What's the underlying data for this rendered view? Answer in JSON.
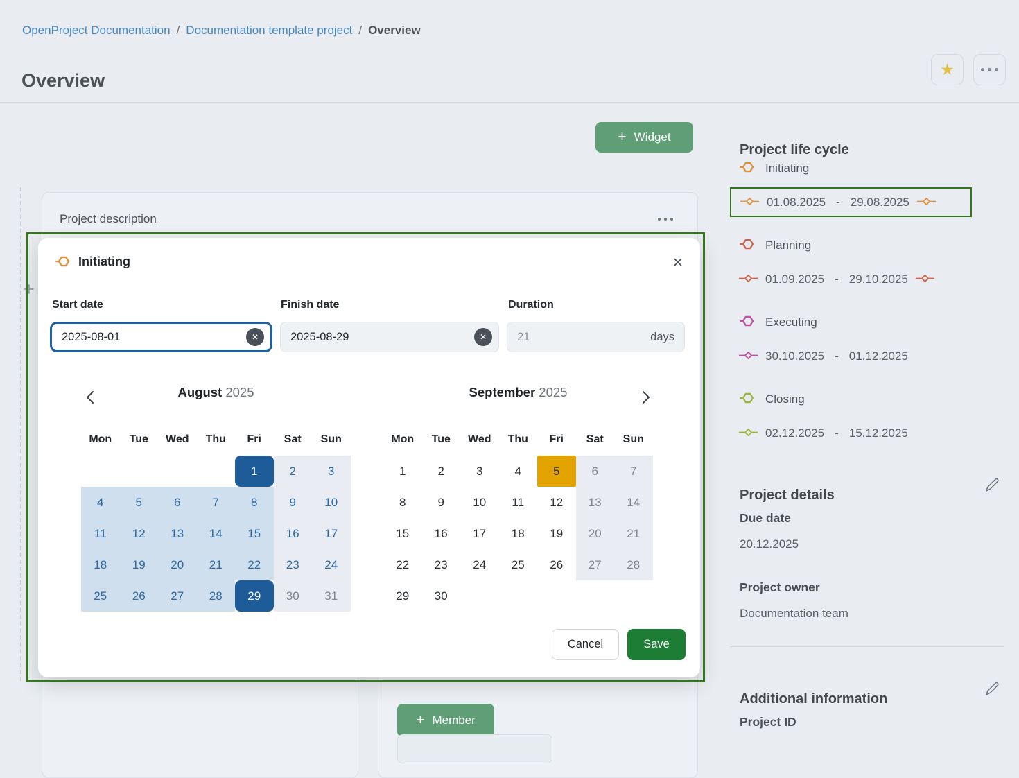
{
  "breadcrumb": {
    "separator": "/",
    "items": [
      {
        "label": "OpenProject Documentation",
        "type": "link"
      },
      {
        "label": "Documentation template project",
        "type": "link"
      },
      {
        "label": "Overview",
        "type": "current"
      }
    ]
  },
  "page": {
    "title": "Overview"
  },
  "icons": {
    "star": "★",
    "close": "✕",
    "plus": "+"
  },
  "toolbar": {
    "widget_button_label": "Widget"
  },
  "background": {
    "description_card_title": "Project description",
    "member_button_label": "Member"
  },
  "sidebar": {
    "lifecycle": {
      "title": "Project life cycle",
      "date_separator": "-",
      "phases": [
        {
          "name": "Initiating",
          "color": "#e0913d",
          "start": "01.08.2025",
          "end": "29.08.2025",
          "end_diamond": true,
          "highlighted": true
        },
        {
          "name": "Planning",
          "color": "#cd6450",
          "start": "01.09.2025",
          "end": "29.10.2025",
          "end_diamond": true,
          "highlighted": false
        },
        {
          "name": "Executing",
          "color": "#bf4fa1",
          "start": "30.10.2025",
          "end": "01.12.2025",
          "end_diamond": false,
          "highlighted": false
        },
        {
          "name": "Closing",
          "color": "#9eb53b",
          "start": "02.12.2025",
          "end": "15.12.2025",
          "end_diamond": false,
          "highlighted": false
        }
      ]
    },
    "details": {
      "title": "Project details",
      "fields": [
        {
          "label": "Due date",
          "value": "20.12.2025"
        },
        {
          "label": "Project owner",
          "value": "Documentation team"
        }
      ]
    },
    "additional": {
      "title": "Additional information",
      "fields": [
        {
          "label": "Project ID",
          "value": ""
        }
      ]
    }
  },
  "modal": {
    "title": "Initiating",
    "phase_color": "#e0913d",
    "fields": {
      "start": {
        "label": "Start date",
        "value": "2025-08-01"
      },
      "finish": {
        "label": "Finish date",
        "value": "2025-08-29"
      },
      "duration": {
        "label": "Duration",
        "value": "21",
        "unit": "days"
      }
    },
    "buttons": {
      "cancel": "Cancel",
      "save": "Save"
    },
    "calendars": [
      {
        "month": "August",
        "year": "2025",
        "weekdays": [
          "Mon",
          "Tue",
          "Wed",
          "Thu",
          "Fri",
          "Sat",
          "Sun"
        ],
        "cells": [
          [
            "",
            "",
            "",
            "",
            "1|sel",
            "2|we",
            "3|we"
          ],
          [
            "4|in",
            "5|in",
            "6|in",
            "7|in",
            "8|in",
            "9|we",
            "10|we"
          ],
          [
            "11|in",
            "12|in",
            "13|in",
            "14|in",
            "15|in",
            "16|we",
            "17|we"
          ],
          [
            "18|in",
            "19|in",
            "20|in",
            "21|in",
            "22|in",
            "23|we",
            "24|we"
          ],
          [
            "25|in",
            "26|in",
            "27|in",
            "28|in",
            "29|sel",
            "30|wm",
            "31|wm"
          ]
        ]
      },
      {
        "month": "September",
        "year": "2025",
        "weekdays": [
          "Mon",
          "Tue",
          "Wed",
          "Thu",
          "Fri",
          "Sat",
          "Sun"
        ],
        "cells": [
          [
            "1|",
            "2|",
            "3|",
            "4|",
            "5|today",
            "6|wm",
            "7|wm"
          ],
          [
            "8|",
            "9|",
            "10|",
            "11|",
            "12|",
            "13|wm",
            "14|wm"
          ],
          [
            "15|",
            "16|",
            "17|",
            "18|",
            "19|",
            "20|wm",
            "21|wm"
          ],
          [
            "22|",
            "23|",
            "24|",
            "25|",
            "26|",
            "27|wm",
            "28|wm"
          ],
          [
            "29|",
            "30|",
            "",
            "",
            "",
            "",
            ""
          ]
        ]
      }
    ]
  },
  "colors": {
    "annotation_green": "#35761d",
    "widget_green": "#5f9e77",
    "save_green": "#1d7d35",
    "selected_blue": "#1d5b99",
    "range_blue": "#cfdfee",
    "weekend_gray": "#e9edf3",
    "today_amber": "#e3a400",
    "focus_blue": "#1b61a8",
    "link_blue": "#4587c0",
    "star_gold": "#e2bf4d"
  }
}
